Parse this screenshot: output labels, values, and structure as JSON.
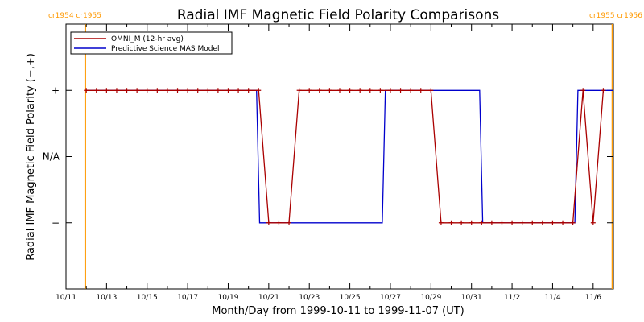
{
  "chart_data": {
    "type": "line",
    "title": "Radial IMF Magnetic Field Polarity Comparisons",
    "xlabel": "Month/Day from 1999-10-11 to 1999-11-07 (UT)",
    "ylabel": "Radial IMF Magnetic Field Polarity (−,+)",
    "x_range_days": [
      0,
      27
    ],
    "x_tick_days": [
      0,
      2,
      4,
      6,
      8,
      10,
      12,
      14,
      16,
      18,
      20,
      22,
      24,
      26
    ],
    "x_tick_labels": [
      "10/11",
      "10/13",
      "10/15",
      "10/17",
      "10/19",
      "10/21",
      "10/23",
      "10/25",
      "10/27",
      "10/29",
      "10/31",
      "11/2",
      "11/4",
      "11/6"
    ],
    "y_categories": [
      "−",
      "N/A",
      "+"
    ],
    "y_values": [
      -1,
      0,
      1
    ],
    "y_range": [
      -2,
      2
    ],
    "grid": false,
    "legend_position": "top-left",
    "colors": {
      "omni": "#aa0000",
      "model": "#0000cc",
      "carrington": "#ff9900"
    },
    "series": [
      {
        "name": "OMNI_M (12-hr avg)",
        "color": "#aa0000",
        "markers": true,
        "x": [
          1.0,
          1.5,
          2.0,
          2.5,
          3.0,
          3.5,
          4.0,
          4.5,
          5.0,
          5.5,
          6.0,
          6.5,
          7.0,
          7.5,
          8.0,
          8.5,
          9.0,
          9.5,
          10.0,
          10.5,
          11.0,
          11.5,
          12.0,
          12.5,
          13.0,
          13.5,
          14.0,
          14.5,
          15.0,
          15.5,
          16.0,
          16.5,
          17.0,
          17.5,
          18.0,
          18.5,
          19.0,
          19.5,
          20.0,
          20.5,
          21.0,
          21.5,
          22.0,
          22.5,
          23.0,
          23.5,
          24.0,
          24.5,
          25.0,
          25.5,
          26.0,
          26.5
        ],
        "y": [
          1,
          1,
          1,
          1,
          1,
          1,
          1,
          1,
          1,
          1,
          1,
          1,
          1,
          1,
          1,
          1,
          1,
          1,
          -1,
          -1,
          -1,
          1,
          1,
          1,
          1,
          1,
          1,
          1,
          1,
          1,
          1,
          1,
          1,
          1,
          1,
          -1,
          -1,
          -1,
          -1,
          -1,
          -1,
          -1,
          -1,
          -1,
          -1,
          -1,
          -1,
          -1,
          -1,
          1,
          -1,
          1
        ]
      },
      {
        "name": "Predictive Science MAS Model",
        "color": "#0000cc",
        "markers": false,
        "x": [
          1.0,
          9.4,
          9.55,
          15.6,
          15.75,
          20.4,
          20.55,
          25.1,
          25.25,
          27.0
        ],
        "y": [
          1,
          1,
          -1,
          -1,
          1,
          1,
          -1,
          -1,
          1,
          1
        ]
      }
    ],
    "carrington_markers": [
      {
        "label": "cr1954 cr1955",
        "side": "left",
        "day": 0.95
      },
      {
        "label": "cr1955 cr1956",
        "side": "right",
        "day": 26.95
      }
    ]
  }
}
